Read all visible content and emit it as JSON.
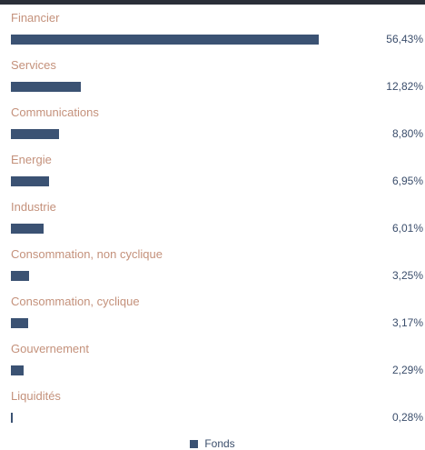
{
  "chart_data": {
    "type": "bar",
    "orientation": "horizontal",
    "categories": [
      "Financier",
      "Services",
      "Communications",
      "Energie",
      "Industrie",
      "Consommation, non cyclique",
      "Consommation, cyclique",
      "Gouvernement",
      "Liquidités"
    ],
    "series": [
      {
        "name": "Fonds",
        "values": [
          56.43,
          12.82,
          8.8,
          6.95,
          6.01,
          3.25,
          3.17,
          2.29,
          0.28
        ],
        "value_labels": [
          "56,43%",
          "12,82%",
          "8,80%",
          "6,95%",
          "6,01%",
          "3,25%",
          "3,17%",
          "2,29%",
          "0,28%"
        ],
        "color": "#3b5273"
      }
    ],
    "xlim": [
      0,
      60
    ],
    "grid": false,
    "legend_position": "bottom-center"
  },
  "colors": {
    "category_label": "#c4917b",
    "bar": "#3b5273",
    "value_label": "#3a4d6b",
    "top_rule": "#2a2f38"
  }
}
